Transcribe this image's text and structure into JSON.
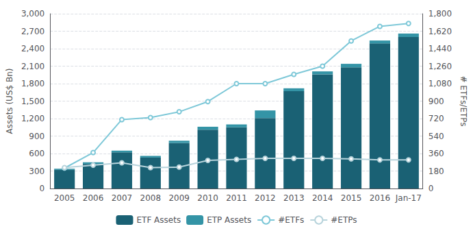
{
  "chart_data": {
    "type": "bar",
    "categories": [
      "2005",
      "2006",
      "2007",
      "2008",
      "2009",
      "2010",
      "2011",
      "2012",
      "2013",
      "2014",
      "2015",
      "2016",
      "Jan-17"
    ],
    "series": [
      {
        "name": "ETF Assets",
        "type": "bar",
        "color": "#1a6174",
        "values": [
          320,
          420,
          620,
          530,
          780,
          1010,
          1050,
          1210,
          1670,
          1960,
          2080,
          2490,
          2600
        ]
      },
      {
        "name": "ETP Assets",
        "type": "bar",
        "color": "#3494a6",
        "values": [
          20,
          30,
          30,
          30,
          40,
          50,
          50,
          130,
          50,
          50,
          60,
          50,
          60
        ]
      },
      {
        "name": "#ETFs",
        "type": "line",
        "axis": "y2",
        "color": "#7ec8d8",
        "marker": "circle",
        "values": [
          210,
          370,
          710,
          730,
          790,
          895,
          1080,
          1080,
          1175,
          1260,
          1520,
          1670,
          1700
        ]
      },
      {
        "name": "#ETPs",
        "type": "line",
        "axis": "y2",
        "color": "#b8d4dc",
        "marker": "circle",
        "values": [
          215,
          240,
          265,
          215,
          220,
          290,
          300,
          310,
          310,
          310,
          305,
          295,
          295
        ]
      }
    ],
    "ylabel": "Assets (US$ Bn)",
    "y2label": "# ETFs/ETPs",
    "ylim": [
      0,
      3000
    ],
    "yticks": [
      0,
      300,
      600,
      900,
      {
        "value": 1200,
        "label": "1,200"
      },
      {
        "value": 1500,
        "label": "1,500"
      },
      {
        "value": 1800,
        "label": "1,800"
      },
      {
        "value": 2100,
        "label": "2,100"
      },
      {
        "value": 2400,
        "label": "2,400"
      },
      {
        "value": 2700,
        "label": "2,700"
      },
      {
        "value": 3000,
        "label": "3,000"
      }
    ],
    "y2lim": [
      0,
      1800
    ],
    "y2ticks": [
      0,
      180,
      360,
      540,
      720,
      900,
      {
        "value": 1080,
        "label": "1,080"
      },
      {
        "value": 1260,
        "label": "1,260"
      },
      {
        "value": 1440,
        "label": "1,440"
      },
      {
        "value": 1620,
        "label": "1,620"
      },
      {
        "value": 1800,
        "label": "1,800"
      }
    ],
    "stacked": true,
    "grid": true,
    "legend": "bottom"
  }
}
